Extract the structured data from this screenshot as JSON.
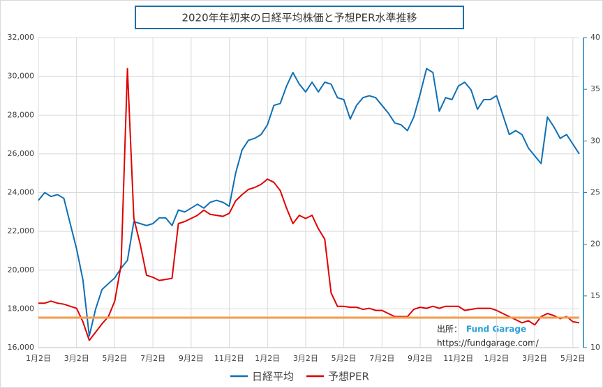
{
  "chart_data": {
    "type": "line",
    "title": "2020年年初来の日経平均株価と予想PER水準推移",
    "categories": [
      "1月2日",
      null,
      null,
      null,
      null,
      null,
      "3月2日",
      null,
      null,
      null,
      null,
      null,
      "5月2日",
      null,
      null,
      null,
      null,
      null,
      "7月2日",
      null,
      null,
      null,
      null,
      null,
      "9月2日",
      null,
      null,
      null,
      null,
      null,
      "11月2日",
      null,
      null,
      null,
      null,
      null,
      "1月2日",
      null,
      null,
      null,
      null,
      null,
      "3月2日",
      null,
      null,
      null,
      null,
      null,
      "5月2日",
      null,
      null,
      null,
      null,
      null,
      "7月2日",
      null,
      null,
      null,
      null,
      null,
      "9月2日",
      null,
      null,
      null,
      null,
      null,
      "11月2日",
      null,
      null,
      null,
      null,
      null,
      "1月2日",
      null,
      null,
      null,
      null,
      null,
      "3月2日",
      null,
      null,
      null,
      null,
      null,
      "5月2日",
      null
    ],
    "series": [
      {
        "name": "日経平均",
        "color": "#0f6fb5",
        "values": [
          23600,
          24000,
          23800,
          23900,
          23700,
          22400,
          21100,
          19500,
          16600,
          18000,
          19000,
          19300,
          19600,
          20100,
          20500,
          22500,
          22400,
          22300,
          22400,
          22700,
          22700,
          22300,
          23100,
          23000,
          23200,
          23400,
          23200,
          23500,
          23600,
          23500,
          23300,
          25000,
          26200,
          26700,
          26800,
          27000,
          27500,
          28500,
          28600,
          29500,
          30200,
          29600,
          29200,
          29700,
          29200,
          29700,
          29600,
          28900,
          28800,
          27800,
          28500,
          28900,
          29000,
          28900,
          28500,
          28100,
          27600,
          27500,
          27200,
          27900,
          29100,
          30400,
          30200,
          28200,
          28900,
          28800,
          29500,
          29700,
          29300,
          28300,
          28800,
          28800,
          29000,
          28000,
          27000,
          27200,
          27000,
          26300,
          25900,
          25500,
          27900,
          27400,
          26800,
          27000,
          26500,
          26000
        ]
      },
      {
        "name": "予想PER",
        "color": "#e00000",
        "axis": "y2",
        "values": [
          14.3,
          14.3,
          14.5,
          14.3,
          14.2,
          14.0,
          13.8,
          12.5,
          10.7,
          11.5,
          12.3,
          13.0,
          14.5,
          18.0,
          37.0,
          22.5,
          20.0,
          17.0,
          16.8,
          16.5,
          16.6,
          16.7,
          22.0,
          22.2,
          22.5,
          22.8,
          23.3,
          22.9,
          22.8,
          22.7,
          23.0,
          24.2,
          24.8,
          25.3,
          25.5,
          25.8,
          26.3,
          26.0,
          25.2,
          23.5,
          22.0,
          22.8,
          22.5,
          22.8,
          21.5,
          20.5,
          15.3,
          14.0,
          14.0,
          13.9,
          13.9,
          13.7,
          13.8,
          13.6,
          13.6,
          13.3,
          13.0,
          13.0,
          13.0,
          13.7,
          13.9,
          13.8,
          14.0,
          13.8,
          14.0,
          14.0,
          14.0,
          13.6,
          13.7,
          13.8,
          13.8,
          13.8,
          13.6,
          13.3,
          13.0,
          12.7,
          12.4,
          12.6,
          12.2,
          13.0,
          13.3,
          13.1,
          12.8,
          13.0,
          12.5,
          12.4
        ]
      }
    ],
    "reference_line": {
      "value": 12.9,
      "axis": "y2",
      "color": "#f39b4e"
    },
    "ylim": [
      16000,
      32000
    ],
    "yticks": [
      {
        "value": 16000,
        "label": "16,000"
      },
      {
        "value": 18000,
        "label": "18,000"
      },
      {
        "value": 20000,
        "label": "20,000"
      },
      {
        "value": 22000,
        "label": "22,000"
      },
      {
        "value": 24000,
        "label": "24,000"
      },
      {
        "value": 26000,
        "label": "26,000"
      },
      {
        "value": 28000,
        "label": "28,000"
      },
      {
        "value": 30000,
        "label": "30,000"
      },
      {
        "value": 32000,
        "label": "32,000"
      }
    ],
    "y2lim": [
      10,
      40
    ],
    "y2ticks": [
      10,
      15,
      20,
      25,
      30,
      35,
      40
    ],
    "grid": true,
    "source": {
      "label": "出所：",
      "name": "Fund Garage",
      "url": "https://fundgarage.com/"
    }
  }
}
